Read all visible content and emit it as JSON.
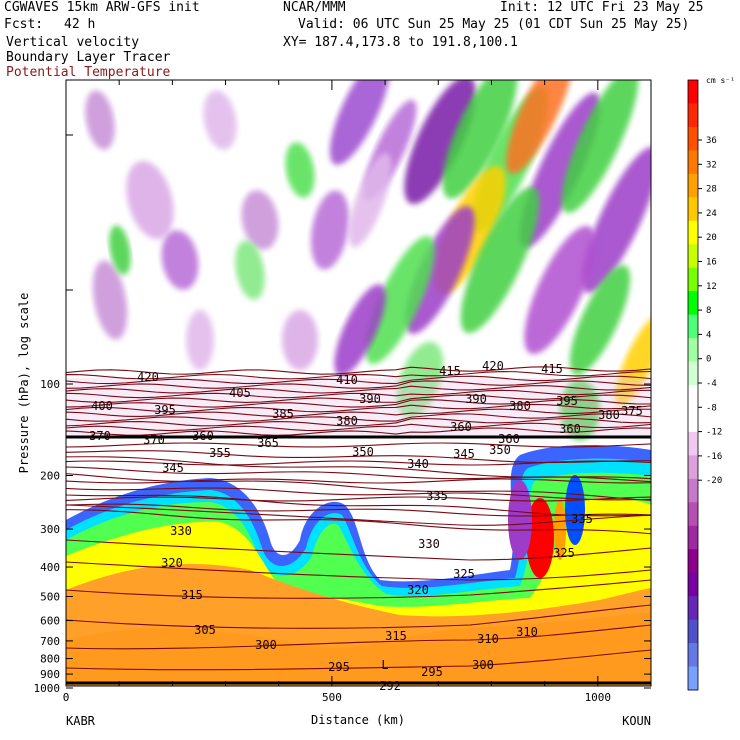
{
  "header": {
    "model_line": "CGWAVES 15km ARW-GFS init",
    "org": "NCAR/MMM",
    "init": "Init: 12 UTC Fri 23 May 25",
    "fcst_label": "Fcst:",
    "fcst_value": "42 h",
    "valid": "Valid: 06 UTC Sun 25 May 25 (01 CDT Sun 25 May 25)",
    "field1": "Vertical velocity",
    "field2": "Boundary Layer Tracer",
    "field3": "Potential Temperature",
    "xy": "XY= 187.4,173.8 to 191.8,100.1",
    "field3_color": "#8b1a1a"
  },
  "chart_data": {
    "type": "heatmap",
    "xlabel": "Distance (km)",
    "ylabel": "Pressure (hPa), log scale",
    "x_ticks": [
      0,
      500,
      1000
    ],
    "xlim": [
      0,
      1100
    ],
    "y_ticks": [
      100,
      200,
      300,
      400,
      500,
      600,
      700,
      800,
      900,
      1000
    ],
    "y_scale": "log",
    "left_station": "KABR",
    "right_station": "KOUN",
    "colorbar": {
      "unit": "cm s⁻¹",
      "labels": [
        36,
        32,
        28,
        24,
        20,
        16,
        12,
        8,
        4,
        0,
        -4,
        -8,
        -12,
        -16,
        -20
      ],
      "colors": [
        "#ff0000",
        "#ff2800",
        "#ff5000",
        "#ff7800",
        "#ffa000",
        "#ffc800",
        "#ffff00",
        "#c8ff00",
        "#78ff00",
        "#00ff00",
        "#50ff78",
        "#a0ffa0",
        "#d2ffd2",
        "#ffffff",
        "#ffffff",
        "#f0c8f0",
        "#dca0dc",
        "#c878c8",
        "#b450b4",
        "#a028a0",
        "#8c008c",
        "#7800a0",
        "#6428b4",
        "#5050c8",
        "#6478e6",
        "#78a0ff"
      ]
    },
    "isentrope_labels": [
      "420",
      "415",
      "420",
      "415",
      "410",
      "405",
      "400",
      "395",
      "395",
      "390",
      "390",
      "380",
      "385",
      "380",
      "380",
      "375",
      "370",
      "370",
      "360",
      "360",
      "365",
      "355",
      "360",
      "360",
      "350",
      "350",
      "340",
      "345",
      "345",
      "335",
      "335",
      "330",
      "330",
      "325",
      "325",
      "320",
      "320",
      "315",
      "315",
      "310",
      "310",
      "305",
      "300",
      "300",
      "295",
      "295",
      "292",
      "L"
    ]
  }
}
